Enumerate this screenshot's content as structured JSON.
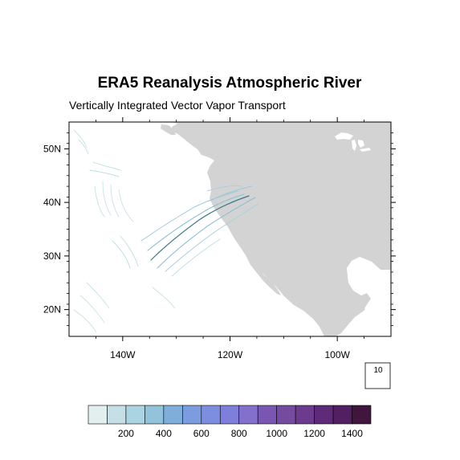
{
  "map": {
    "title": "ERA5 Reanalysis Atmospheric River",
    "subtitle": "Vertically Integrated Vector Vapor Transport",
    "region": {
      "lon_range": [
        -150,
        -90
      ],
      "lat_range": [
        15,
        55
      ]
    },
    "x_ticks": [
      {
        "lon": -140,
        "label": "140W"
      },
      {
        "lon": -120,
        "label": "120W"
      },
      {
        "lon": -100,
        "label": "100W"
      }
    ],
    "y_ticks": [
      {
        "lat": 50,
        "label": "50N"
      },
      {
        "lat": 40,
        "label": "40N"
      },
      {
        "lat": 30,
        "label": "30N"
      },
      {
        "lat": 20,
        "label": "20N"
      }
    ],
    "land_color": "#d3d3d3",
    "ocean_color": "#ffffff",
    "reference_vector": {
      "label": "10"
    }
  },
  "colorbar": {
    "colors": [
      "#e3efef",
      "#c4e0e6",
      "#aad4e1",
      "#92c3db",
      "#80aedb",
      "#7b9ddf",
      "#7d8ee0",
      "#7d7fda",
      "#8270cc",
      "#7a56b3",
      "#744b9e",
      "#6c3b8d",
      "#5f2a78",
      "#522062",
      "#40163e"
    ],
    "labels": [
      {
        "index": 2,
        "text": "200"
      },
      {
        "index": 4,
        "text": "400"
      },
      {
        "index": 6,
        "text": "600"
      },
      {
        "index": 8,
        "text": "800"
      },
      {
        "index": 10,
        "text": "1000"
      },
      {
        "index": 12,
        "text": "1200"
      },
      {
        "index": 14,
        "text": "1400"
      }
    ]
  }
}
